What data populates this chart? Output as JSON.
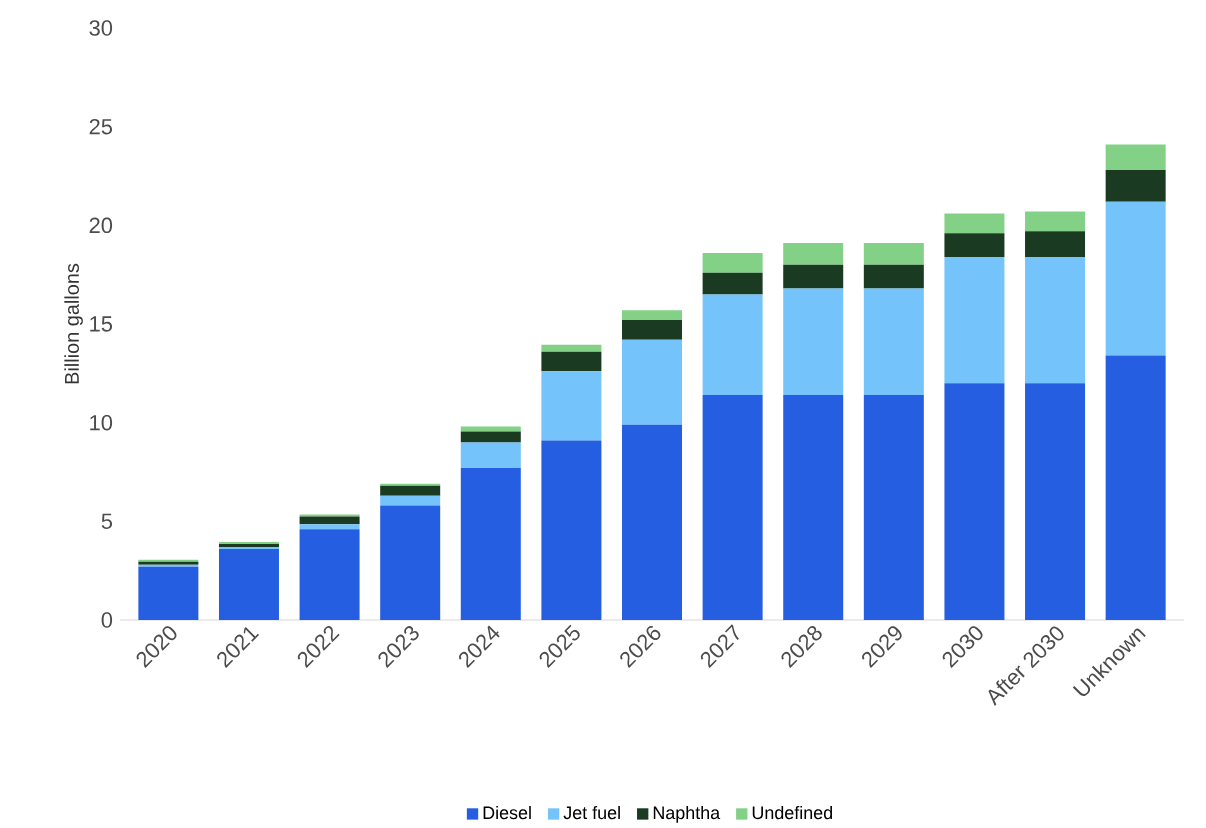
{
  "chart_data": {
    "type": "bar",
    "stacked": true,
    "ylabel": "Billion gallons",
    "categories": [
      "2020",
      "2021",
      "2022",
      "2023",
      "2024",
      "2025",
      "2026",
      "2027",
      "2028",
      "2029",
      "2030",
      "After 2030",
      "Unknown"
    ],
    "series": [
      {
        "name": "Diesel",
        "color": "#255ee0",
        "values": [
          2.7,
          3.6,
          4.6,
          5.8,
          7.7,
          9.1,
          9.9,
          11.4,
          11.4,
          11.4,
          12.0,
          12.0,
          13.4
        ]
      },
      {
        "name": "Jet fuel",
        "color": "#75c3fb",
        "values": [
          0.1,
          0.1,
          0.25,
          0.5,
          1.3,
          3.5,
          4.3,
          5.1,
          5.4,
          5.4,
          6.4,
          6.4,
          7.8
        ]
      },
      {
        "name": "Naphtha",
        "color": "#1a3a22",
        "values": [
          0.15,
          0.15,
          0.4,
          0.5,
          0.55,
          1.0,
          1.0,
          1.1,
          1.2,
          1.2,
          1.2,
          1.3,
          1.6
        ]
      },
      {
        "name": "Undefined",
        "color": "#82d187",
        "values": [
          0.1,
          0.1,
          0.1,
          0.1,
          0.25,
          0.35,
          0.5,
          1.0,
          1.1,
          1.1,
          1.0,
          1.0,
          1.3
        ]
      }
    ],
    "ylim": [
      0,
      30
    ],
    "yticks": [
      0,
      5,
      10,
      15,
      20,
      25,
      30
    ],
    "grid": false,
    "legend": "bottom"
  }
}
